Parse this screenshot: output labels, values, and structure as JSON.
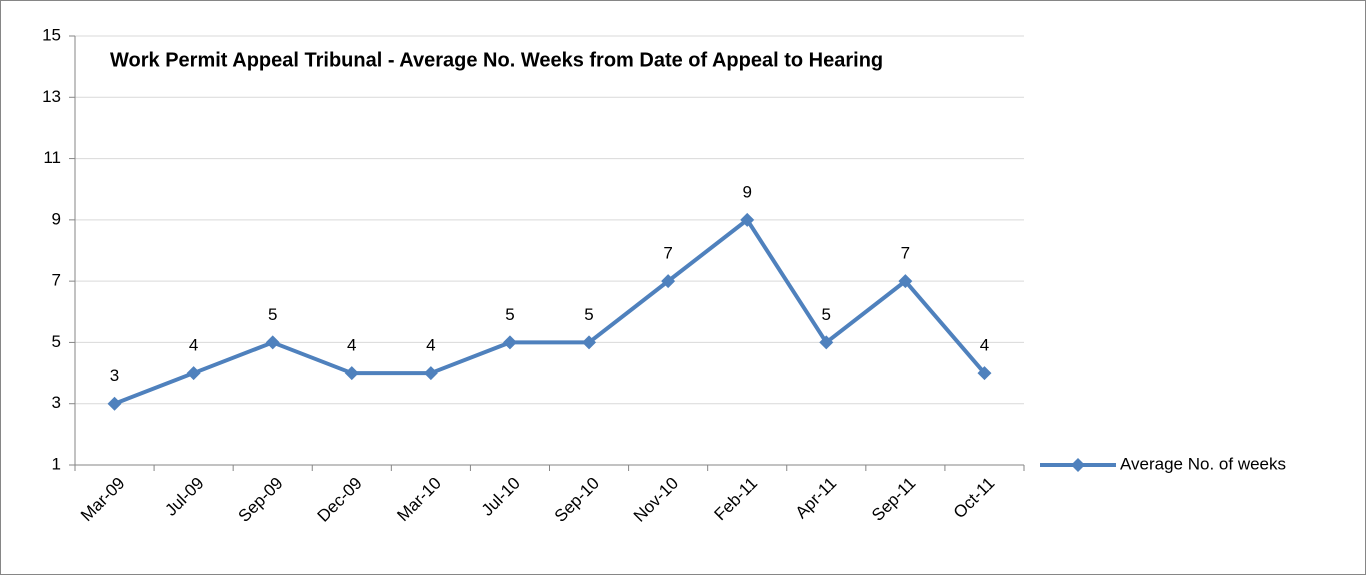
{
  "chart_data": {
    "type": "line",
    "title": "Work Permit Appeal Tribunal - Average No. Weeks from Date of Appeal to Hearing",
    "categories": [
      "Mar-09",
      "Jul-09",
      "Sep-09",
      "Dec-09",
      "Mar-10",
      "Jul-10",
      "Sep-10",
      "Nov-10",
      "Feb-11",
      "Apr-11",
      "Sep-11",
      "Oct-11"
    ],
    "series": [
      {
        "name": "Average No. of weeks",
        "color": "#4f81bd",
        "values": [
          3,
          4,
          5,
          4,
          4,
          5,
          5,
          7,
          9,
          5,
          7,
          4
        ]
      }
    ],
    "ylim": [
      1,
      15
    ],
    "yticks": [
      1,
      3,
      5,
      7,
      9,
      11,
      13,
      15
    ],
    "grid": true,
    "legend": "right",
    "data_labels": true
  }
}
